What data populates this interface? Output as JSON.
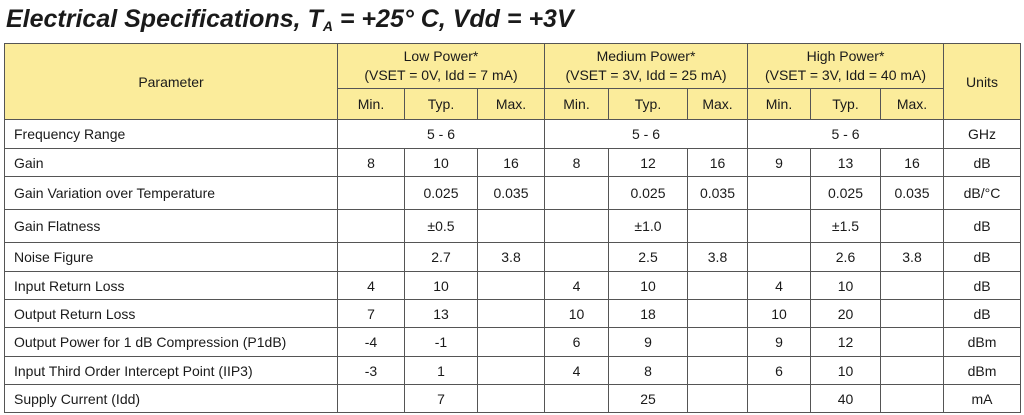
{
  "title": {
    "main": "Electrical Specifications,",
    "ta_prefix": "T",
    "ta_sub": "A",
    "conditions": "= +25° C, Vdd = +3V"
  },
  "header": {
    "parameter": "Parameter",
    "units": "Units",
    "groups": [
      {
        "name": "Low Power*",
        "condition": "(VSET = 0V, Idd = 7 mA)"
      },
      {
        "name": "Medium Power*",
        "condition": "(VSET = 3V, Idd = 25 mA)"
      },
      {
        "name": "High Power*",
        "condition": "(VSET = 3V, Idd = 40 mA)"
      }
    ],
    "min": "Min.",
    "typ": "Typ.",
    "max": "Max."
  },
  "rows": [
    {
      "param": "Frequency Range",
      "low": "5 - 6",
      "med": "5 - 6",
      "high": "5 - 6",
      "units": "GHz"
    },
    {
      "param": "Gain",
      "low_min": "8",
      "low_typ": "10",
      "low_max": "16",
      "med_min": "8",
      "med_typ": "12",
      "med_max": "16",
      "high_min": "9",
      "high_typ": "13",
      "high_max": "16",
      "units": "dB"
    },
    {
      "param": "Gain Variation over Temperature",
      "low_min": "",
      "low_typ": "0.025",
      "low_max": "0.035",
      "med_min": "",
      "med_typ": "0.025",
      "med_max": "0.035",
      "high_min": "",
      "high_typ": "0.025",
      "high_max": "0.035",
      "units": "dB/°C"
    },
    {
      "param": "Gain Flatness",
      "low_min": "",
      "low_typ": "±0.5",
      "low_max": "",
      "med_min": "",
      "med_typ": "±1.0",
      "med_max": "",
      "high_min": "",
      "high_typ": "±1.5",
      "high_max": "",
      "units": "dB"
    },
    {
      "param": "Noise Figure",
      "low_min": "",
      "low_typ": "2.7",
      "low_max": "3.8",
      "med_min": "",
      "med_typ": "2.5",
      "med_max": "3.8",
      "high_min": "",
      "high_typ": "2.6",
      "high_max": "3.8",
      "units": "dB"
    },
    {
      "param": "Input Return Loss",
      "low_min": "4",
      "low_typ": "10",
      "low_max": "",
      "med_min": "4",
      "med_typ": "10",
      "med_max": "",
      "high_min": "4",
      "high_typ": "10",
      "high_max": "",
      "units": "dB"
    },
    {
      "param": "Output Return Loss",
      "low_min": "7",
      "low_typ": "13",
      "low_max": "",
      "med_min": "10",
      "med_typ": "18",
      "med_max": "",
      "high_min": "10",
      "high_typ": "20",
      "high_max": "",
      "units": "dB"
    },
    {
      "param": "Output Power for 1 dB Compression (P1dB)",
      "low_min": "-4",
      "low_typ": "-1",
      "low_max": "",
      "med_min": "6",
      "med_typ": "9",
      "med_max": "",
      "high_min": "9",
      "high_typ": "12",
      "high_max": "",
      "units": "dBm"
    },
    {
      "param": "Input Third Order Intercept Point (IIP3)",
      "low_min": "-3",
      "low_typ": "1",
      "low_max": "",
      "med_min": "4",
      "med_typ": "8",
      "med_max": "",
      "high_min": "6",
      "high_typ": "10",
      "high_max": "",
      "units": "dBm"
    },
    {
      "param": "Supply Current (Idd)",
      "low_min": "",
      "low_typ": "7",
      "low_max": "",
      "med_min": "",
      "med_typ": "25",
      "med_max": "",
      "high_min": "",
      "high_typ": "40",
      "high_max": "",
      "units": "mA"
    }
  ]
}
